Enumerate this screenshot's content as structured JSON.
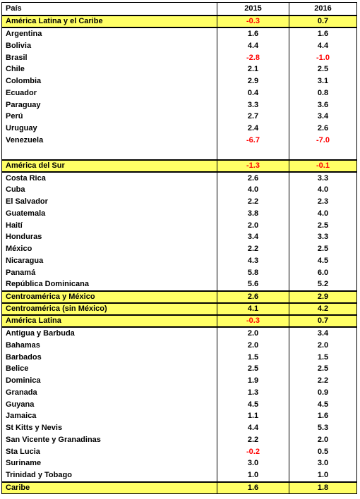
{
  "headers": {
    "country": "País",
    "y2015": "2015",
    "y2016": "2016"
  },
  "rows": [
    {
      "type": "hl",
      "name": "América Latina y el Caribe",
      "v2015": "-0.3",
      "v2016": "0.7"
    },
    {
      "type": "row",
      "name": "Argentina",
      "v2015": "1.6",
      "v2016": "1.6"
    },
    {
      "type": "row",
      "name": "Bolivia",
      "v2015": "4.4",
      "v2016": "4.4"
    },
    {
      "type": "row",
      "name": "Brasil",
      "v2015": "-2.8",
      "v2016": "-1.0"
    },
    {
      "type": "row",
      "name": "Chile",
      "v2015": "2.1",
      "v2016": "2.5"
    },
    {
      "type": "row",
      "name": "Colombia",
      "v2015": "2.9",
      "v2016": "3.1"
    },
    {
      "type": "row",
      "name": "Ecuador",
      "v2015": "0.4",
      "v2016": "0.8"
    },
    {
      "type": "row",
      "name": "Paraguay",
      "v2015": "3.3",
      "v2016": "3.6"
    },
    {
      "type": "row",
      "name": "Perú",
      "v2015": "2.7",
      "v2016": "3.4"
    },
    {
      "type": "row",
      "name": "Uruguay",
      "v2015": "2.4",
      "v2016": "2.6"
    },
    {
      "type": "row",
      "name": "Venezuela",
      "v2015": "-6.7",
      "v2016": "-7.0"
    },
    {
      "type": "spacer",
      "name": "",
      "v2015": "",
      "v2016": ""
    },
    {
      "type": "hl",
      "name": "América del Sur",
      "v2015": "-1.3",
      "v2016": "-0.1"
    },
    {
      "type": "row",
      "name": "Costa Rica",
      "v2015": "2.6",
      "v2016": "3.3"
    },
    {
      "type": "row",
      "name": "Cuba",
      "v2015": "4.0",
      "v2016": "4.0"
    },
    {
      "type": "row",
      "name": "El Salvador",
      "v2015": "2.2",
      "v2016": "2.3"
    },
    {
      "type": "row",
      "name": "Guatemala",
      "v2015": "3.8",
      "v2016": "4.0"
    },
    {
      "type": "row",
      "name": "Haití",
      "v2015": "2.0",
      "v2016": "2.5"
    },
    {
      "type": "row",
      "name": "Honduras",
      "v2015": "3.4",
      "v2016": "3.3"
    },
    {
      "type": "row",
      "name": "México",
      "v2015": "2.2",
      "v2016": "2.5"
    },
    {
      "type": "row",
      "name": "Nicaragua",
      "v2015": "4.3",
      "v2016": "4.5"
    },
    {
      "type": "row",
      "name": "Panamá",
      "v2015": "5.8",
      "v2016": "6.0"
    },
    {
      "type": "row",
      "name": "República Dominicana",
      "v2015": "5.6",
      "v2016": "5.2"
    },
    {
      "type": "hl",
      "name": "Centroamérica y México",
      "v2015": "2.6",
      "v2016": "2.9"
    },
    {
      "type": "hl",
      "name": "Centroamérica (sin México)",
      "v2015": "4.1",
      "v2016": "4.2"
    },
    {
      "type": "hl",
      "name": "América Latina",
      "v2015": "-0.3",
      "v2016": "0.7"
    },
    {
      "type": "row",
      "name": "Antigua y Barbuda",
      "v2015": "2.0",
      "v2016": "3.4"
    },
    {
      "type": "row",
      "name": "Bahamas",
      "v2015": "2.0",
      "v2016": "2.0"
    },
    {
      "type": "row",
      "name": "Barbados",
      "v2015": "1.5",
      "v2016": "1.5"
    },
    {
      "type": "row",
      "name": "Belice",
      "v2015": "2.5",
      "v2016": "2.5"
    },
    {
      "type": "row",
      "name": "Dominica",
      "v2015": "1.9",
      "v2016": "2.2"
    },
    {
      "type": "row",
      "name": "Granada",
      "v2015": "1.3",
      "v2016": "0.9"
    },
    {
      "type": "row",
      "name": "Guyana",
      "v2015": "4.5",
      "v2016": "4.5"
    },
    {
      "type": "row",
      "name": "Jamaica",
      "v2015": "1.1",
      "v2016": "1.6"
    },
    {
      "type": "row",
      "name": "St Kitts y Nevis",
      "v2015": "4.4",
      "v2016": "5.3"
    },
    {
      "type": "row",
      "name": "San Vicente y Granadinas",
      "v2015": "2.2",
      "v2016": "2.0"
    },
    {
      "type": "row",
      "name": "Sta Lucia",
      "v2015": "-0.2",
      "v2016": "0.5"
    },
    {
      "type": "row",
      "name": "Suriname",
      "v2015": "3.0",
      "v2016": "3.0"
    },
    {
      "type": "row",
      "name": "Trinidad y Tobago",
      "v2015": "1.0",
      "v2016": "1.0"
    },
    {
      "type": "hl",
      "name": "Caribe",
      "v2015": "1.6",
      "v2016": "1.8"
    }
  ],
  "colors": {
    "highlight": "#ffff66",
    "negative": "#ff0000",
    "text": "#000000"
  }
}
